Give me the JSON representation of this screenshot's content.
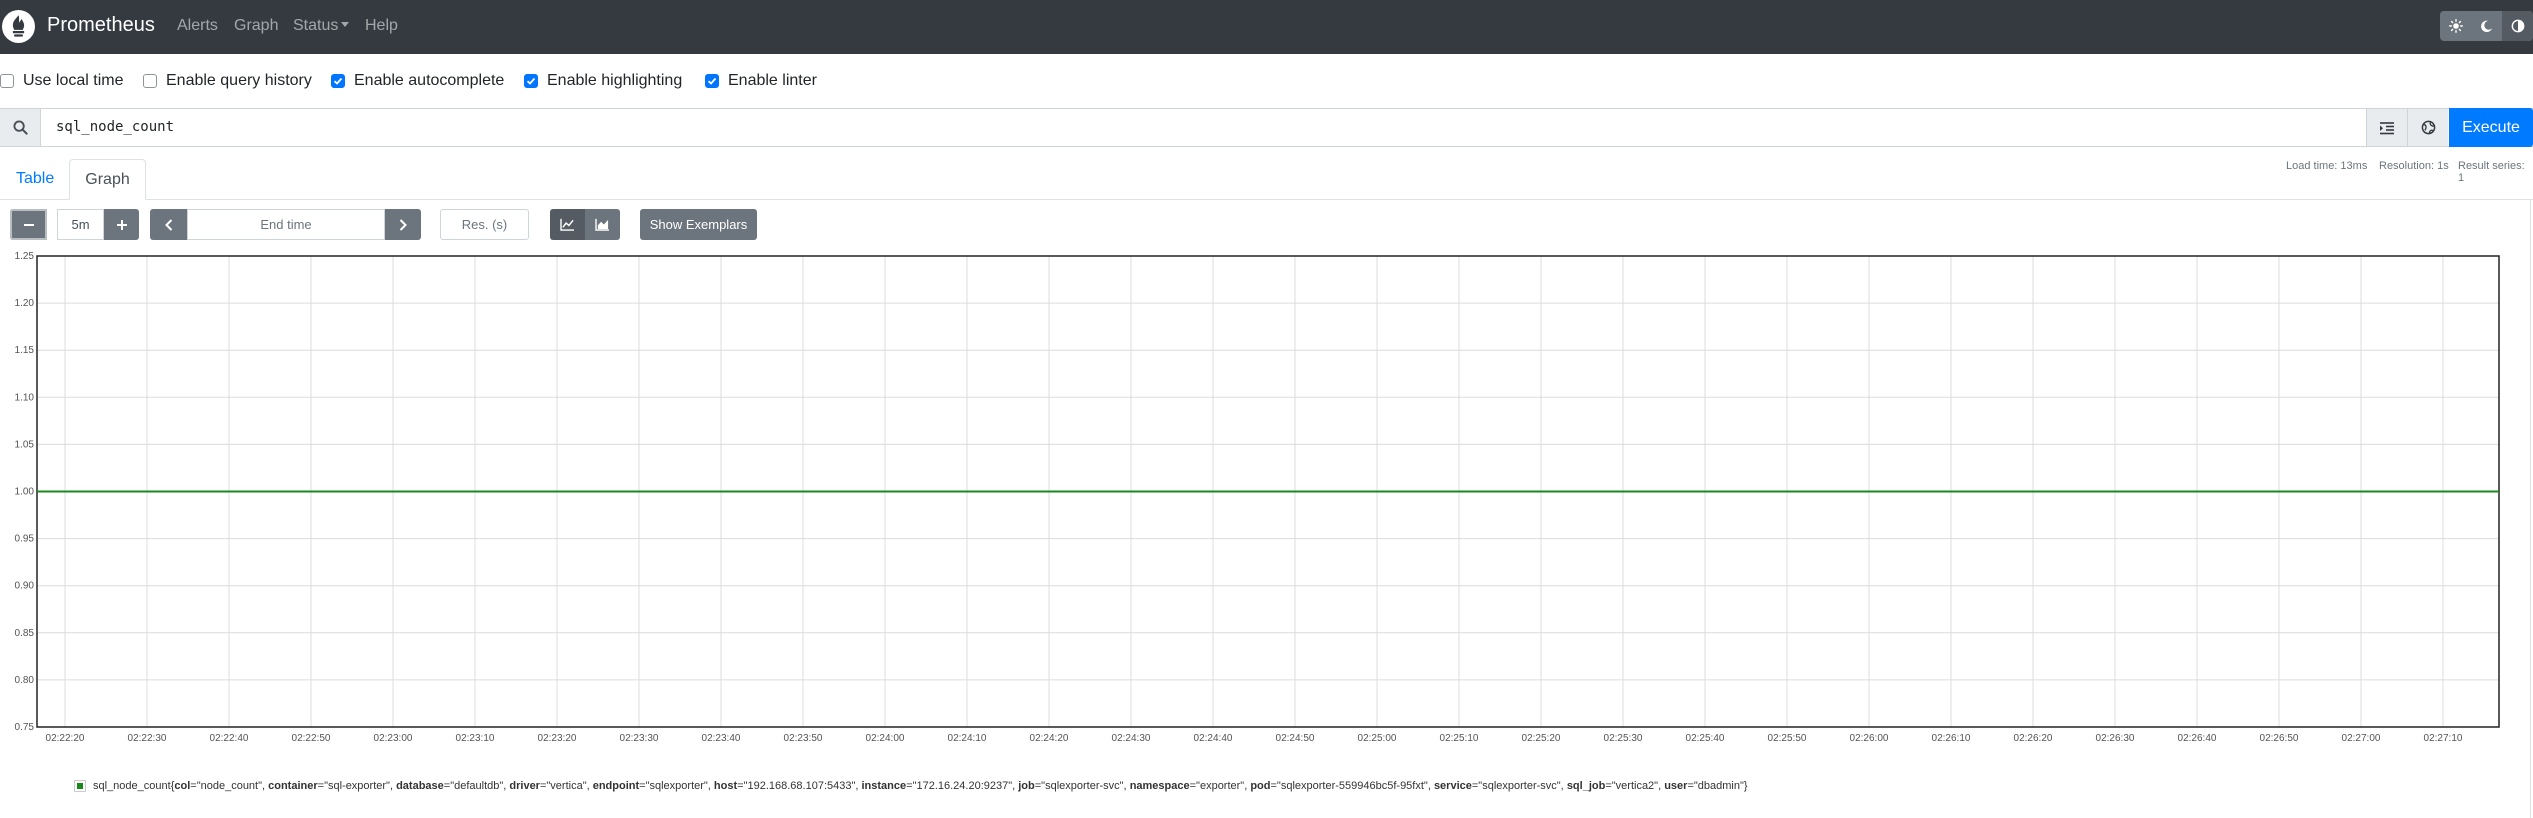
{
  "navbar": {
    "brand": "Prometheus",
    "links": [
      "Alerts",
      "Graph",
      "Status",
      "Help"
    ],
    "theme_icons": [
      "sun-icon",
      "moon-icon",
      "contrast-icon"
    ]
  },
  "options": [
    {
      "label": "Use local time",
      "checked": false
    },
    {
      "label": "Enable query history",
      "checked": false
    },
    {
      "label": "Enable autocomplete",
      "checked": true
    },
    {
      "label": "Enable highlighting",
      "checked": true
    },
    {
      "label": "Enable linter",
      "checked": true
    }
  ],
  "query": {
    "expression": "sql_node_count",
    "execute_label": "Execute"
  },
  "tabs": {
    "table_label": "Table",
    "graph_label": "Graph"
  },
  "stats": {
    "load_time": "Load time: 13ms",
    "resolution": "Resolution: 1s",
    "result_series": "Result series: 1"
  },
  "graph_controls": {
    "range": "5m",
    "end_time_placeholder": "End time",
    "resolution_placeholder": "Res. (s)",
    "exemplars_label": "Show Exemplars"
  },
  "colors": {
    "series": "#1b8a1b",
    "execute": "#007bff",
    "navbar": "#343a40"
  },
  "chart_data": {
    "type": "line",
    "ylim": [
      0.75,
      1.25
    ],
    "y_ticks": [
      "1.25",
      "1.20",
      "1.15",
      "1.10",
      "1.05",
      "1.00",
      "0.95",
      "0.90",
      "0.85",
      "0.80",
      "0.75"
    ],
    "x_ticks": [
      "02:22:20",
      "02:22:30",
      "02:22:40",
      "02:22:50",
      "02:23:00",
      "02:23:10",
      "02:23:20",
      "02:23:30",
      "02:23:40",
      "02:23:50",
      "02:24:00",
      "02:24:10",
      "02:24:20",
      "02:24:30",
      "02:24:40",
      "02:24:50",
      "02:25:00",
      "02:25:10",
      "02:25:20",
      "02:25:30",
      "02:25:40",
      "02:25:50",
      "02:26:00",
      "02:26:10",
      "02:26:20",
      "02:26:30",
      "02:26:40",
      "02:26:50",
      "02:27:00",
      "02:27:10"
    ],
    "grid": true,
    "series": [
      {
        "name": "sql_node_count{col=\"node_count\", container=\"sql-exporter\", database=\"defaultdb\", driver=\"vertica\", endpoint=\"sqlexporter\", host=\"192.168.68.107:5433\", instance=\"172.16.24.20:9237\", job=\"sqlexporter-svc\", namespace=\"exporter\", pod=\"sqlexporter-559946bc5f-95fxt\", service=\"sqlexporter-svc\", sql_job=\"vertica2\", user=\"dbadmin\"}",
        "values": [
          1,
          1
        ]
      }
    ]
  },
  "legend": {
    "metric": "sql_node_count",
    "open": "{",
    "close": "}",
    "labels": [
      {
        "key": "col",
        "value": "=\"node_count\", "
      },
      {
        "key": "container",
        "value": "=\"sql-exporter\", "
      },
      {
        "key": "database",
        "value": "=\"defaultdb\", "
      },
      {
        "key": "driver",
        "value": "=\"vertica\", "
      },
      {
        "key": "endpoint",
        "value": "=\"sqlexporter\", "
      },
      {
        "key": "host",
        "value": "=\"192.168.68.107:5433\", "
      },
      {
        "key": "instance",
        "value": "=\"172.16.24.20:9237\", "
      },
      {
        "key": "job",
        "value": "=\"sqlexporter-svc\", "
      },
      {
        "key": "namespace",
        "value": "=\"exporter\", "
      },
      {
        "key": "pod",
        "value": "=\"sqlexporter-559946bc5f-95fxt\", "
      },
      {
        "key": "service",
        "value": "=\"sqlexporter-svc\", "
      },
      {
        "key": "sql_job",
        "value": "=\"vertica2\", "
      },
      {
        "key": "user",
        "value": "=\"dbadmin\""
      }
    ]
  }
}
